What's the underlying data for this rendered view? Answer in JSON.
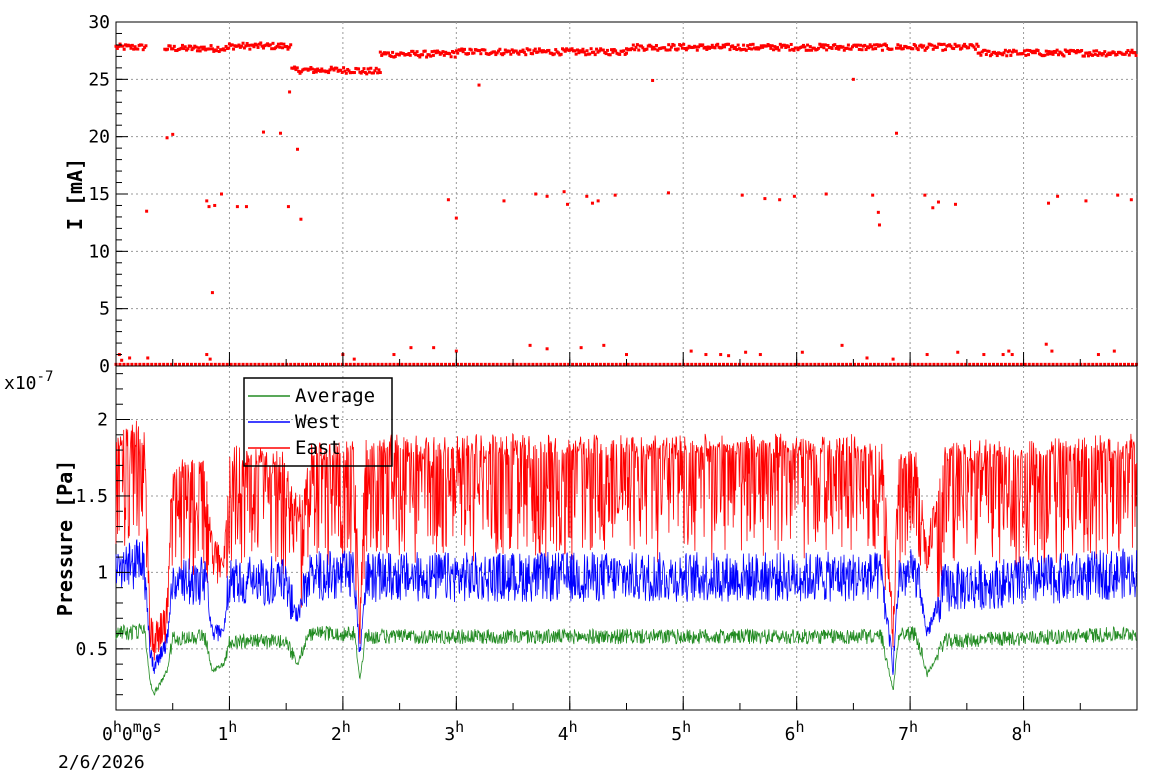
{
  "chart_data": [
    {
      "type": "scatter",
      "title": "",
      "xlabel": "",
      "ylabel": "I [mA]",
      "xlim_hours": [
        0,
        9
      ],
      "ylim": [
        0,
        30
      ],
      "yticks": [
        "0",
        "5",
        "10",
        "15",
        "20",
        "25",
        "30"
      ],
      "grid": true,
      "series": [
        {
          "color": "#ff0000",
          "baseline_segments": [
            {
              "x": [
                0.0,
                0.27
              ],
              "y": 27.8
            },
            {
              "x": [
                0.43,
                1.0
              ],
              "y": 27.7
            },
            {
              "x": [
                1.0,
                1.55
              ],
              "y": 27.9
            },
            {
              "x": [
                1.55,
                2.15
              ],
              "y": 25.8
            },
            {
              "x": [
                2.15,
                2.33
              ],
              "y": 25.7
            },
            {
              "x": [
                2.33,
                3.0
              ],
              "y": 27.2
            },
            {
              "x": [
                3.0,
                4.5
              ],
              "y": 27.4
            },
            {
              "x": [
                4.5,
                6.85
              ],
              "y": 27.8
            },
            {
              "x": [
                6.88,
                7.6
              ],
              "y": 27.8
            },
            {
              "x": [
                7.6,
                9.0
              ],
              "y": 27.3
            }
          ],
          "outliers": [
            [
              0.03,
              1.0
            ],
            [
              0.05,
              0.5
            ],
            [
              0.12,
              0.7
            ],
            [
              0.28,
              0.7
            ],
            [
              0.27,
              13.5
            ],
            [
              0.45,
              19.9
            ],
            [
              0.5,
              20.2
            ],
            [
              0.8,
              14.4
            ],
            [
              0.82,
              13.9
            ],
            [
              0.85,
              6.4
            ],
            [
              0.87,
              14.0
            ],
            [
              0.93,
              15.0
            ],
            [
              0.8,
              1.0
            ],
            [
              0.83,
              0.6
            ],
            [
              1.07,
              13.9
            ],
            [
              1.15,
              13.9
            ],
            [
              1.3,
              20.4
            ],
            [
              1.45,
              20.3
            ],
            [
              1.52,
              13.9
            ],
            [
              1.53,
              23.9
            ],
            [
              1.6,
              18.9
            ],
            [
              1.63,
              12.8
            ],
            [
              2.0,
              1.0
            ],
            [
              2.1,
              0.6
            ],
            [
              2.45,
              1.0
            ],
            [
              2.6,
              1.6
            ],
            [
              2.8,
              1.6
            ],
            [
              3.0,
              1.3
            ],
            [
              3.0,
              12.9
            ],
            [
              2.93,
              14.5
            ],
            [
              3.2,
              24.5
            ],
            [
              3.42,
              14.4
            ],
            [
              3.7,
              15.0
            ],
            [
              3.8,
              14.8
            ],
            [
              3.95,
              15.2
            ],
            [
              3.98,
              14.1
            ],
            [
              4.15,
              14.8
            ],
            [
              4.2,
              14.2
            ],
            [
              4.25,
              14.4
            ],
            [
              4.4,
              14.9
            ],
            [
              3.65,
              1.8
            ],
            [
              3.8,
              1.5
            ],
            [
              4.1,
              1.6
            ],
            [
              4.3,
              1.8
            ],
            [
              4.5,
              1.0
            ],
            [
              4.73,
              24.9
            ],
            [
              4.87,
              15.1
            ],
            [
              5.07,
              1.3
            ],
            [
              5.2,
              1.0
            ],
            [
              5.33,
              1.0
            ],
            [
              5.4,
              0.9
            ],
            [
              5.55,
              1.2
            ],
            [
              5.68,
              1.0
            ],
            [
              5.52,
              14.9
            ],
            [
              5.72,
              14.6
            ],
            [
              5.85,
              14.5
            ],
            [
              5.98,
              14.8
            ],
            [
              6.05,
              1.2
            ],
            [
              6.26,
              15.0
            ],
            [
              6.4,
              1.8
            ],
            [
              6.5,
              25.0
            ],
            [
              6.67,
              14.9
            ],
            [
              6.73,
              12.3
            ],
            [
              6.72,
              13.4
            ],
            [
              6.62,
              0.7
            ],
            [
              6.85,
              0.6
            ],
            [
              6.88,
              20.3
            ],
            [
              7.15,
              1.0
            ],
            [
              7.13,
              14.9
            ],
            [
              7.2,
              13.8
            ],
            [
              7.25,
              14.3
            ],
            [
              7.4,
              14.1
            ],
            [
              7.42,
              1.2
            ],
            [
              7.65,
              1.0
            ],
            [
              7.82,
              1.0
            ],
            [
              7.87,
              1.3
            ],
            [
              7.9,
              1.0
            ],
            [
              8.2,
              1.9
            ],
            [
              8.25,
              1.3
            ],
            [
              8.22,
              14.2
            ],
            [
              8.3,
              14.8
            ],
            [
              8.55,
              14.4
            ],
            [
              8.66,
              1.0
            ],
            [
              8.8,
              1.3
            ],
            [
              8.83,
              14.9
            ],
            [
              8.95,
              14.5
            ]
          ]
        }
      ]
    },
    {
      "type": "line",
      "title": "",
      "xlabel": "",
      "ylabel": "Pressure [Pa]",
      "y_multiplier": "x10",
      "y_multiplier_exponent": "-7",
      "xlim_hours": [
        0,
        9
      ],
      "ylim": [
        0.1,
        2.35
      ],
      "yticks": [
        "0.5",
        "1",
        "1.5",
        "2"
      ],
      "xtick_labels": [
        "0",
        "h",
        "0",
        "m",
        "0",
        "s",
        "1",
        "h",
        "2",
        "h",
        "3",
        "h",
        "4",
        "h",
        "5",
        "h",
        "6",
        "h",
        "7",
        "h",
        "8",
        "h"
      ],
      "x_date_label": "2/6/2026",
      "grid": true,
      "legend_position": "top-left",
      "series": [
        {
          "name": "Average",
          "color": "#228b22",
          "profile": [
            [
              0.0,
              0.6
            ],
            [
              0.25,
              0.62
            ],
            [
              0.3,
              0.3
            ],
            [
              0.33,
              0.2
            ],
            [
              0.45,
              0.35
            ],
            [
              0.5,
              0.57
            ],
            [
              0.78,
              0.58
            ],
            [
              0.85,
              0.35
            ],
            [
              0.95,
              0.4
            ],
            [
              1.0,
              0.55
            ],
            [
              1.5,
              0.55
            ],
            [
              1.6,
              0.4
            ],
            [
              1.7,
              0.6
            ],
            [
              2.1,
              0.6
            ],
            [
              2.15,
              0.3
            ],
            [
              2.2,
              0.58
            ],
            [
              6.75,
              0.58
            ],
            [
              6.85,
              0.22
            ],
            [
              6.9,
              0.6
            ],
            [
              7.05,
              0.6
            ],
            [
              7.15,
              0.33
            ],
            [
              7.3,
              0.55
            ],
            [
              9.0,
              0.6
            ]
          ]
        },
        {
          "name": "West",
          "color": "#0000ff",
          "profile": [
            [
              0.0,
              1.05
            ],
            [
              0.25,
              1.05
            ],
            [
              0.3,
              0.5
            ],
            [
              0.33,
              0.38
            ],
            [
              0.45,
              0.55
            ],
            [
              0.5,
              0.93
            ],
            [
              0.78,
              0.95
            ],
            [
              0.85,
              0.6
            ],
            [
              0.95,
              0.62
            ],
            [
              1.0,
              0.95
            ],
            [
              1.5,
              0.95
            ],
            [
              1.6,
              0.7
            ],
            [
              1.7,
              0.98
            ],
            [
              2.1,
              0.98
            ],
            [
              2.15,
              0.45
            ],
            [
              2.2,
              0.97
            ],
            [
              6.75,
              0.97
            ],
            [
              6.85,
              0.38
            ],
            [
              6.9,
              0.97
            ],
            [
              7.05,
              1.0
            ],
            [
              7.15,
              0.6
            ],
            [
              7.3,
              0.9
            ],
            [
              9.0,
              1.0
            ]
          ]
        },
        {
          "name": "East",
          "color": "#ff0000",
          "profile": [
            [
              0.0,
              1.9
            ],
            [
              0.25,
              1.95
            ],
            [
              0.3,
              0.65
            ],
            [
              0.33,
              0.55
            ],
            [
              0.45,
              0.7
            ],
            [
              0.5,
              1.7
            ],
            [
              0.78,
              1.75
            ],
            [
              0.85,
              1.1
            ],
            [
              0.95,
              1.05
            ],
            [
              1.0,
              1.8
            ],
            [
              1.5,
              1.75
            ],
            [
              1.6,
              1.3
            ],
            [
              1.7,
              1.8
            ],
            [
              2.1,
              1.85
            ],
            [
              2.15,
              0.55
            ],
            [
              2.2,
              1.85
            ],
            [
              6.75,
              1.85
            ],
            [
              6.85,
              0.55
            ],
            [
              6.9,
              1.75
            ],
            [
              7.05,
              1.75
            ],
            [
              7.15,
              1.05
            ],
            [
              7.3,
              1.8
            ],
            [
              9.0,
              1.85
            ]
          ]
        }
      ]
    }
  ]
}
